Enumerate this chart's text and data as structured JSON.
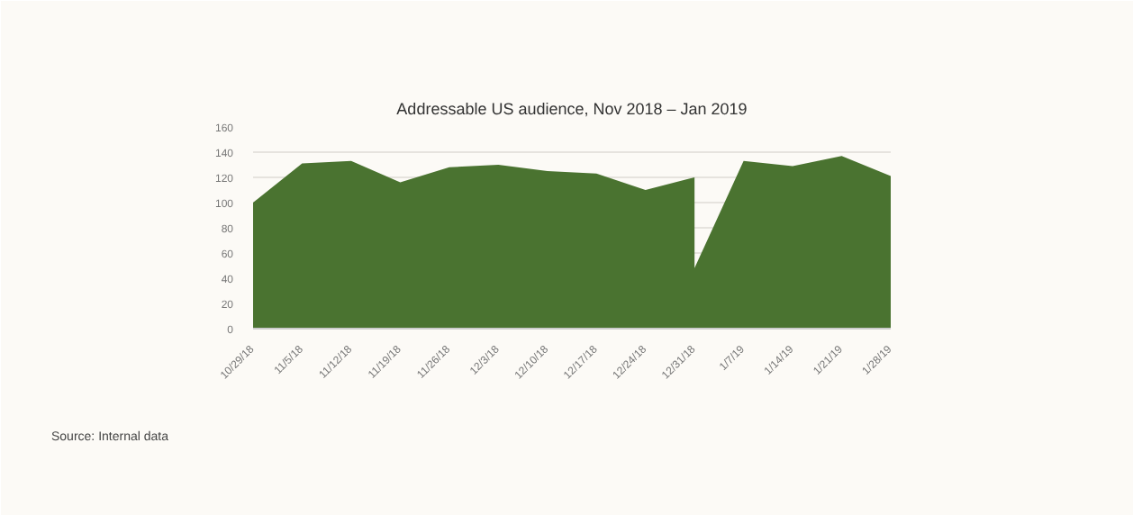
{
  "chart_data": {
    "type": "area",
    "title": "Addressable US audience, Nov 2018 – Jan 2019",
    "x": [
      "2018-10-29",
      "2018-11-05",
      "2018-11-12",
      "2018-11-19",
      "2018-11-26",
      "2018-12-03",
      "2018-12-10",
      "2018-12-17",
      "2018-12-24",
      "2018-12-31",
      "2018-12-31",
      "2019-01-07",
      "2019-01-14",
      "2019-01-21",
      "2019-01-28"
    ],
    "series": [
      {
        "color": "#4a7330",
        "values": [
          100,
          131,
          133,
          116,
          128,
          130,
          125,
          123,
          110,
          120,
          48,
          133,
          129,
          137,
          121
        ]
      }
    ],
    "xlim": [
      "2018-10-29",
      "2019-01-28"
    ],
    "xticks": [
      {
        "value": "2018-10-29",
        "label": "10/29/18"
      },
      {
        "value": "2018-11-05",
        "label": "11/5/18"
      },
      {
        "value": "2018-11-12",
        "label": "11/12/18"
      },
      {
        "value": "2018-11-19",
        "label": "11/19/18"
      },
      {
        "value": "2018-11-26",
        "label": "11/26/18"
      },
      {
        "value": "2018-12-03",
        "label": "12/3/18"
      },
      {
        "value": "2018-12-10",
        "label": "12/10/18"
      },
      {
        "value": "2018-12-17",
        "label": "12/17/18"
      },
      {
        "value": "2018-12-24",
        "label": "12/24/18"
      },
      {
        "value": "2018-12-31",
        "label": "12/31/18"
      },
      {
        "value": "2019-01-07",
        "label": "1/7/19"
      },
      {
        "value": "2019-01-14",
        "label": "1/14/19"
      },
      {
        "value": "2019-01-21",
        "label": "1/21/19"
      },
      {
        "value": "2019-01-28",
        "label": "1/28/19"
      }
    ],
    "ylim": [
      0,
      160
    ],
    "yticks": [
      0,
      20,
      40,
      60,
      80,
      100,
      120,
      140,
      160
    ],
    "grid": "y",
    "annotations": [
      "Source: Internal data"
    ]
  }
}
